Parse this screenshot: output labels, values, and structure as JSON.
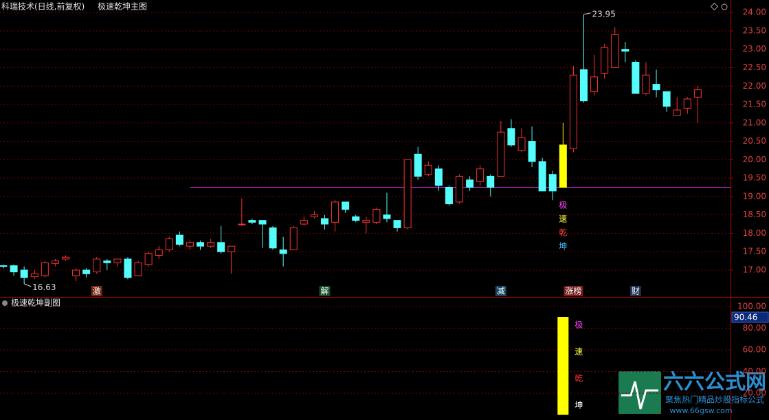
{
  "chart_data": [
    {
      "type": "candlestick",
      "title": "科瑞技术(日线,前复权)",
      "subtitle": "极速乾坤主图",
      "open": [
        17.12,
        17.12,
        17.0,
        16.82,
        16.85,
        17.18,
        17.3,
        16.85,
        17.0,
        16.95,
        17.25,
        17.2,
        17.3,
        16.85,
        17.15,
        17.4,
        17.55,
        17.95,
        17.65,
        17.75,
        17.65,
        17.75,
        17.5,
        18.25,
        18.35,
        18.35,
        18.15,
        17.55,
        17.55,
        18.25,
        18.45,
        18.4,
        18.3,
        18.85,
        18.45,
        18.3,
        18.3,
        18.5,
        18.35,
        18.15,
        20.15,
        19.6,
        19.75,
        19.25,
        18.85,
        19.45,
        19.4,
        19.55,
        19.55,
        20.85,
        20.25,
        20.5,
        19.95,
        19.6,
        19.25,
        20.3,
        22.45,
        21.85,
        22.35,
        22.5,
        23.0,
        22.65,
        21.8,
        22.05,
        21.85,
        21.2,
        21.4,
        21.7
      ],
      "high": [
        17.15,
        17.15,
        17.1,
        17.0,
        17.25,
        17.3,
        17.4,
        17.05,
        17.05,
        17.35,
        17.3,
        17.3,
        17.35,
        17.25,
        17.5,
        17.65,
        17.9,
        18.05,
        17.8,
        17.8,
        17.85,
        18.2,
        17.65,
        18.95,
        18.4,
        18.35,
        18.2,
        17.9,
        18.2,
        18.45,
        18.6,
        18.5,
        18.9,
        18.85,
        18.5,
        18.45,
        18.7,
        19.1,
        18.35,
        20.0,
        20.35,
        19.95,
        19.85,
        19.3,
        19.6,
        19.55,
        19.85,
        19.6,
        21.05,
        21.1,
        20.85,
        20.9,
        20.05,
        19.7,
        21.0,
        22.55,
        23.95,
        22.85,
        23.15,
        23.6,
        23.2,
        22.7,
        22.65,
        22.45,
        21.85,
        21.7,
        21.7,
        22.0
      ],
      "low": [
        17.05,
        16.85,
        16.63,
        16.75,
        16.8,
        17.1,
        17.25,
        16.7,
        16.8,
        16.9,
        17.0,
        17.1,
        16.75,
        16.85,
        17.1,
        17.3,
        17.5,
        17.65,
        17.55,
        17.55,
        17.6,
        17.45,
        16.9,
        18.2,
        18.25,
        17.6,
        17.55,
        17.1,
        17.55,
        18.2,
        18.4,
        18.1,
        18.05,
        18.55,
        18.3,
        18.0,
        18.25,
        18.3,
        18.05,
        18.1,
        19.45,
        19.55,
        19.15,
        18.75,
        18.8,
        19.15,
        19.3,
        19.0,
        19.55,
        20.35,
        20.2,
        19.8,
        19.15,
        18.9,
        19.25,
        20.2,
        21.55,
        21.75,
        22.2,
        22.5,
        22.65,
        21.8,
        21.75,
        21.7,
        21.3,
        21.2,
        21.25,
        21.0
      ],
      "close": [
        17.1,
        16.95,
        16.8,
        16.9,
        17.2,
        17.25,
        17.35,
        17.0,
        16.9,
        17.3,
        17.2,
        17.3,
        16.8,
        17.2,
        17.45,
        17.55,
        17.85,
        17.7,
        17.75,
        17.65,
        17.75,
        17.5,
        17.65,
        18.25,
        18.3,
        18.25,
        17.6,
        17.45,
        18.15,
        18.35,
        18.5,
        18.25,
        18.85,
        18.65,
        18.35,
        18.35,
        18.65,
        18.4,
        18.15,
        20.0,
        19.55,
        19.85,
        19.3,
        18.8,
        19.55,
        19.25,
        19.75,
        19.25,
        20.75,
        20.4,
        20.6,
        19.95,
        19.15,
        19.15,
        20.4,
        22.3,
        21.6,
        22.25,
        23.05,
        23.4,
        22.95,
        21.8,
        22.3,
        21.9,
        21.45,
        21.35,
        21.65,
        21.9
      ],
      "up_color": "#ff3232",
      "down_color": "#54fcfc",
      "highlight_index": 54,
      "highlight_color": "#ffff00",
      "ylim": [
        16.27,
        24.34
      ],
      "yticks": [
        {
          "value": 17,
          "label": "17.00"
        },
        {
          "value": 17.5,
          "label": "17.50"
        },
        {
          "value": 18,
          "label": "18.00"
        },
        {
          "value": 18.5,
          "label": "18.50"
        },
        {
          "value": 19,
          "label": "19.00"
        },
        {
          "value": 19.5,
          "label": "19.50"
        },
        {
          "value": 20,
          "label": "20.00"
        },
        {
          "value": 20.5,
          "label": "20.50"
        },
        {
          "value": 21,
          "label": "21.00"
        },
        {
          "value": 21.5,
          "label": "21.50"
        },
        {
          "value": 22,
          "label": "22.00"
        },
        {
          "value": 22.5,
          "label": "22.50"
        },
        {
          "value": 23,
          "label": "23.00"
        },
        {
          "value": 23.5,
          "label": "23.50"
        },
        {
          "value": 24,
          "label": "24.00"
        }
      ],
      "grid": true,
      "extremes": [
        {
          "index": 56,
          "value": 23.95,
          "label": "23.95"
        },
        {
          "index": 2,
          "value": 16.63,
          "label": "16.63"
        }
      ],
      "hline": {
        "value": 19.25,
        "from_index": 18,
        "color": "#d020d0"
      },
      "events": [
        {
          "index": 9,
          "text": "激",
          "color": "#c04020"
        },
        {
          "index": 31,
          "text": "解",
          "color": "#208040"
        },
        {
          "index": 48,
          "text": "减",
          "color": "#2070a0"
        },
        {
          "index": 55,
          "text": "涨榜",
          "color": "#c03030"
        },
        {
          "index": 61,
          "text": "财",
          "color": "#305080"
        }
      ],
      "signal": {
        "index": 54,
        "chars": [
          "极",
          "速",
          "乾",
          "坤"
        ],
        "colors": [
          "#ff40ff",
          "#ffff40",
          "#ff4040",
          "#40c0ff"
        ]
      }
    },
    {
      "type": "bar",
      "title": "极速乾坤副图",
      "index": 54,
      "values": [
        90.46
      ],
      "value_labels": [
        "90.46"
      ],
      "color": "#ffff00",
      "ylim": [
        -5,
        100
      ],
      "yticks": [
        {
          "value": 100,
          "label": "100.00"
        },
        {
          "value": 80,
          "label": "80.00"
        },
        {
          "value": 60,
          "label": "60.00"
        },
        {
          "value": 40,
          "label": "40.00"
        },
        {
          "value": 20,
          "label": "20.00"
        }
      ],
      "chars": [
        "极",
        "速",
        "乾",
        "坤"
      ],
      "char_colors": [
        "#ff40ff",
        "#ffff40",
        "#ff3030",
        "#ffffff"
      ]
    }
  ],
  "watermark": {
    "name": "六六公式网",
    "slogan": "聚焦热门精品炒股指标公式",
    "url": "www.66gsw.com"
  }
}
